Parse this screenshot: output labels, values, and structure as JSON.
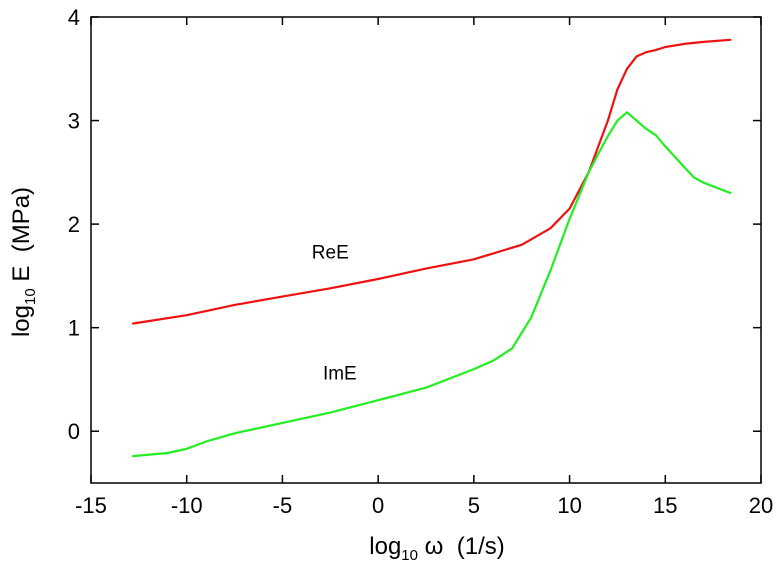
{
  "chart_data": {
    "type": "line",
    "xlabel": {
      "prefix": "log",
      "sub": "10",
      "suffix": " ω  (1/s)"
    },
    "ylabel": {
      "prefix": "log",
      "sub": "10",
      "suffix": " E  (MPa)"
    },
    "xlim": [
      -15,
      20
    ],
    "ylim": [
      -0.5,
      4
    ],
    "xticks": [
      -15,
      -10,
      -5,
      0,
      5,
      10,
      15,
      20
    ],
    "yticks": [
      0,
      1,
      2,
      3,
      4
    ],
    "xtick_labels": [
      "-15",
      "-10",
      "-5",
      "0",
      "5",
      "10",
      "15",
      "20"
    ],
    "ytick_labels": [
      "0",
      "1",
      "2",
      "3",
      "4"
    ],
    "grid": false,
    "series": [
      {
        "color": "#ee1111",
        "x": [
          -12.8,
          -10,
          -7.5,
          -5,
          -2.5,
          0,
          2.5,
          5,
          7.5,
          9,
          10,
          11,
          11.5,
          12,
          12.5,
          13,
          13.5,
          14,
          14.5,
          15,
          16,
          17,
          18.4
        ],
        "y": [
          1.04,
          1.12,
          1.22,
          1.3,
          1.38,
          1.47,
          1.57,
          1.66,
          1.8,
          1.96,
          2.15,
          2.5,
          2.75,
          3.0,
          3.3,
          3.5,
          3.62,
          3.66,
          3.68,
          3.71,
          3.74,
          3.76,
          3.78
        ]
      },
      {
        "color": "#22ee22",
        "x": [
          -12.8,
          -11,
          -10,
          -9,
          -7.5,
          -5,
          -2.5,
          0,
          2.5,
          5,
          6,
          7,
          8,
          9,
          10,
          11,
          11.5,
          12,
          12.5,
          13,
          13.5,
          14,
          14.5,
          15,
          16,
          16.5,
          17,
          18.4
        ],
        "y": [
          -0.24,
          -0.21,
          -0.17,
          -0.1,
          -0.02,
          0.08,
          0.18,
          0.3,
          0.42,
          0.6,
          0.68,
          0.8,
          1.1,
          1.55,
          2.05,
          2.5,
          2.68,
          2.85,
          3.0,
          3.08,
          3.0,
          2.92,
          2.86,
          2.75,
          2.55,
          2.45,
          2.4,
          2.3
        ]
      }
    ],
    "annotations": [
      {
        "text": "ReE",
        "x": -2.5,
        "y": 1.67
      },
      {
        "text": "ImE",
        "x": -2.0,
        "y": 0.5
      }
    ]
  }
}
